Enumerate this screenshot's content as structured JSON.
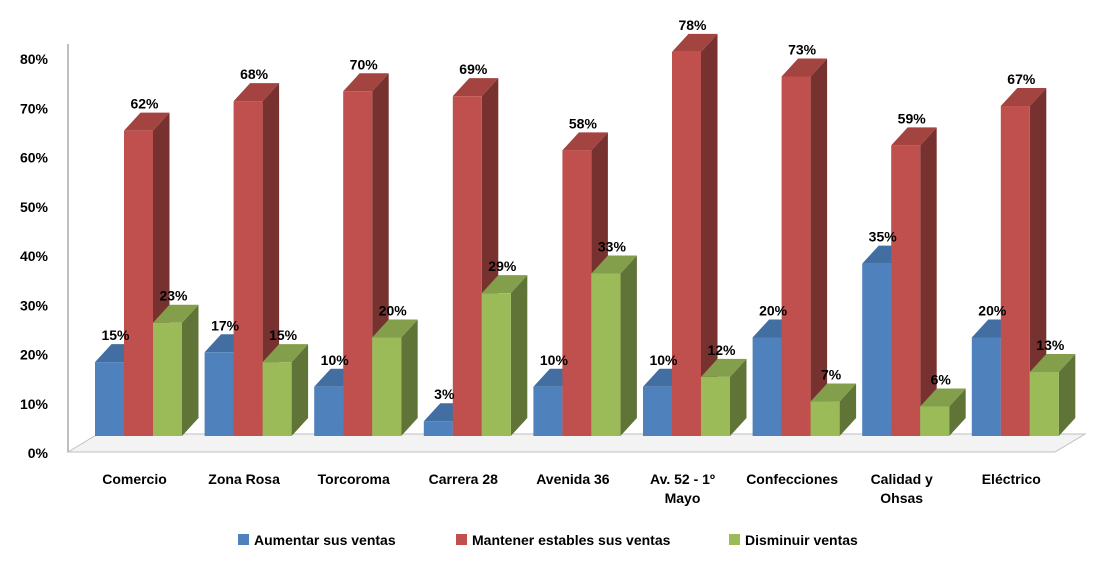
{
  "chart_data": {
    "type": "bar",
    "subtype": "3d-clustered-column",
    "title": "",
    "xlabel": "",
    "ylabel": "",
    "ylim": [
      0,
      80
    ],
    "yticks": [
      "0%",
      "10%",
      "20%",
      "30%",
      "40%",
      "50%",
      "60%",
      "70%",
      "80%"
    ],
    "value_suffix": "%",
    "grid": false,
    "legend_position": "bottom",
    "categories": [
      [
        "Comercio"
      ],
      [
        "Zona Rosa"
      ],
      [
        "Torcoroma"
      ],
      [
        "Carrera 28"
      ],
      [
        "Avenida 36"
      ],
      [
        "Av. 52 - 1º",
        "Mayo"
      ],
      [
        "Confecciones"
      ],
      [
        "Calidad y",
        "Ohsas"
      ],
      [
        "Eléctrico"
      ]
    ],
    "series": [
      {
        "name": "Aumentar sus ventas",
        "color": "#4F81BD",
        "values": [
          15,
          17,
          10,
          3,
          10,
          10,
          20,
          35,
          20
        ]
      },
      {
        "name": "Mantener estables sus ventas",
        "color": "#C0504D",
        "values": [
          62,
          68,
          70,
          69,
          58,
          78,
          73,
          59,
          67
        ]
      },
      {
        "name": "Disminuir ventas",
        "color": "#9BBB59",
        "values": [
          23,
          15,
          20,
          29,
          33,
          12,
          7,
          6,
          13
        ]
      }
    ]
  }
}
